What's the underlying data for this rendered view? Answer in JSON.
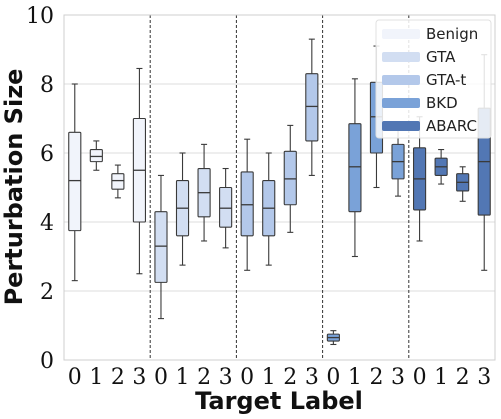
{
  "chart_data": {
    "type": "box",
    "title": "",
    "xlabel": "Target Label",
    "ylabel": "Perturbation Size",
    "ylim": [
      0,
      10
    ],
    "yticks": [
      0,
      2,
      4,
      6,
      8,
      10
    ],
    "grid": true,
    "legend_position": "top-right",
    "categories": [
      "0",
      "1",
      "2",
      "3"
    ],
    "series": [
      {
        "name": "Benign",
        "color": "#f1f4fb",
        "boxes": [
          {
            "label": "0",
            "whislo": 2.3,
            "q1": 3.75,
            "median": 5.2,
            "q3": 6.6,
            "whishi": 8.0
          },
          {
            "label": "1",
            "whislo": 5.5,
            "q1": 5.75,
            "median": 5.9,
            "q3": 6.1,
            "whishi": 6.35
          },
          {
            "label": "2",
            "whislo": 4.7,
            "q1": 4.95,
            "median": 5.2,
            "q3": 5.4,
            "whishi": 5.65
          },
          {
            "label": "3",
            "whislo": 2.5,
            "q1": 4.0,
            "median": 5.5,
            "q3": 7.0,
            "whishi": 8.45
          }
        ]
      },
      {
        "name": "GTA",
        "color": "#d2def2",
        "boxes": [
          {
            "label": "0",
            "whislo": 1.2,
            "q1": 2.25,
            "median": 3.3,
            "q3": 4.3,
            "whishi": 5.35
          },
          {
            "label": "1",
            "whislo": 2.75,
            "q1": 3.6,
            "median": 4.4,
            "q3": 5.2,
            "whishi": 6.0
          },
          {
            "label": "2",
            "whislo": 3.45,
            "q1": 4.15,
            "median": 4.85,
            "q3": 5.55,
            "whishi": 6.25
          },
          {
            "label": "3",
            "whislo": 3.25,
            "q1": 3.85,
            "median": 4.4,
            "q3": 5.0,
            "whishi": 5.55
          }
        ]
      },
      {
        "name": "GTA-t",
        "color": "#b3c8ea",
        "boxes": [
          {
            "label": "0",
            "whislo": 2.6,
            "q1": 3.6,
            "median": 4.5,
            "q3": 5.45,
            "whishi": 6.4
          },
          {
            "label": "1",
            "whislo": 2.75,
            "q1": 3.6,
            "median": 4.4,
            "q3": 5.2,
            "whishi": 6.0
          },
          {
            "label": "2",
            "whislo": 3.7,
            "q1": 4.5,
            "median": 5.25,
            "q3": 6.05,
            "whishi": 6.8
          },
          {
            "label": "3",
            "whislo": 5.35,
            "q1": 6.35,
            "median": 7.35,
            "q3": 8.3,
            "whishi": 9.3
          }
        ]
      },
      {
        "name": "BKD",
        "color": "#7aa2d8",
        "boxes": [
          {
            "label": "0",
            "whislo": 0.45,
            "q1": 0.55,
            "median": 0.65,
            "q3": 0.75,
            "whishi": 0.85
          },
          {
            "label": "1",
            "whislo": 3.0,
            "q1": 4.3,
            "median": 5.6,
            "q3": 6.85,
            "whishi": 8.15
          },
          {
            "label": "2",
            "whislo": 5.0,
            "q1": 6.0,
            "median": 7.05,
            "q3": 8.05,
            "whishi": 9.1
          },
          {
            "label": "3",
            "whislo": 4.75,
            "q1": 5.25,
            "median": 5.75,
            "q3": 6.25,
            "whishi": 6.75
          }
        ]
      },
      {
        "name": "ABARC",
        "color": "#5277b4",
        "boxes": [
          {
            "label": "0",
            "whislo": 3.45,
            "q1": 4.35,
            "median": 5.25,
            "q3": 6.15,
            "whishi": 7.05
          },
          {
            "label": "1",
            "whislo": 5.1,
            "q1": 5.35,
            "median": 5.6,
            "q3": 5.85,
            "whishi": 6.1
          },
          {
            "label": "2",
            "whislo": 4.6,
            "q1": 4.9,
            "median": 5.15,
            "q3": 5.4,
            "whishi": 5.6
          },
          {
            "label": "3",
            "whislo": 2.6,
            "q1": 4.2,
            "median": 5.75,
            "q3": 7.3,
            "whishi": 8.85
          }
        ]
      }
    ]
  }
}
